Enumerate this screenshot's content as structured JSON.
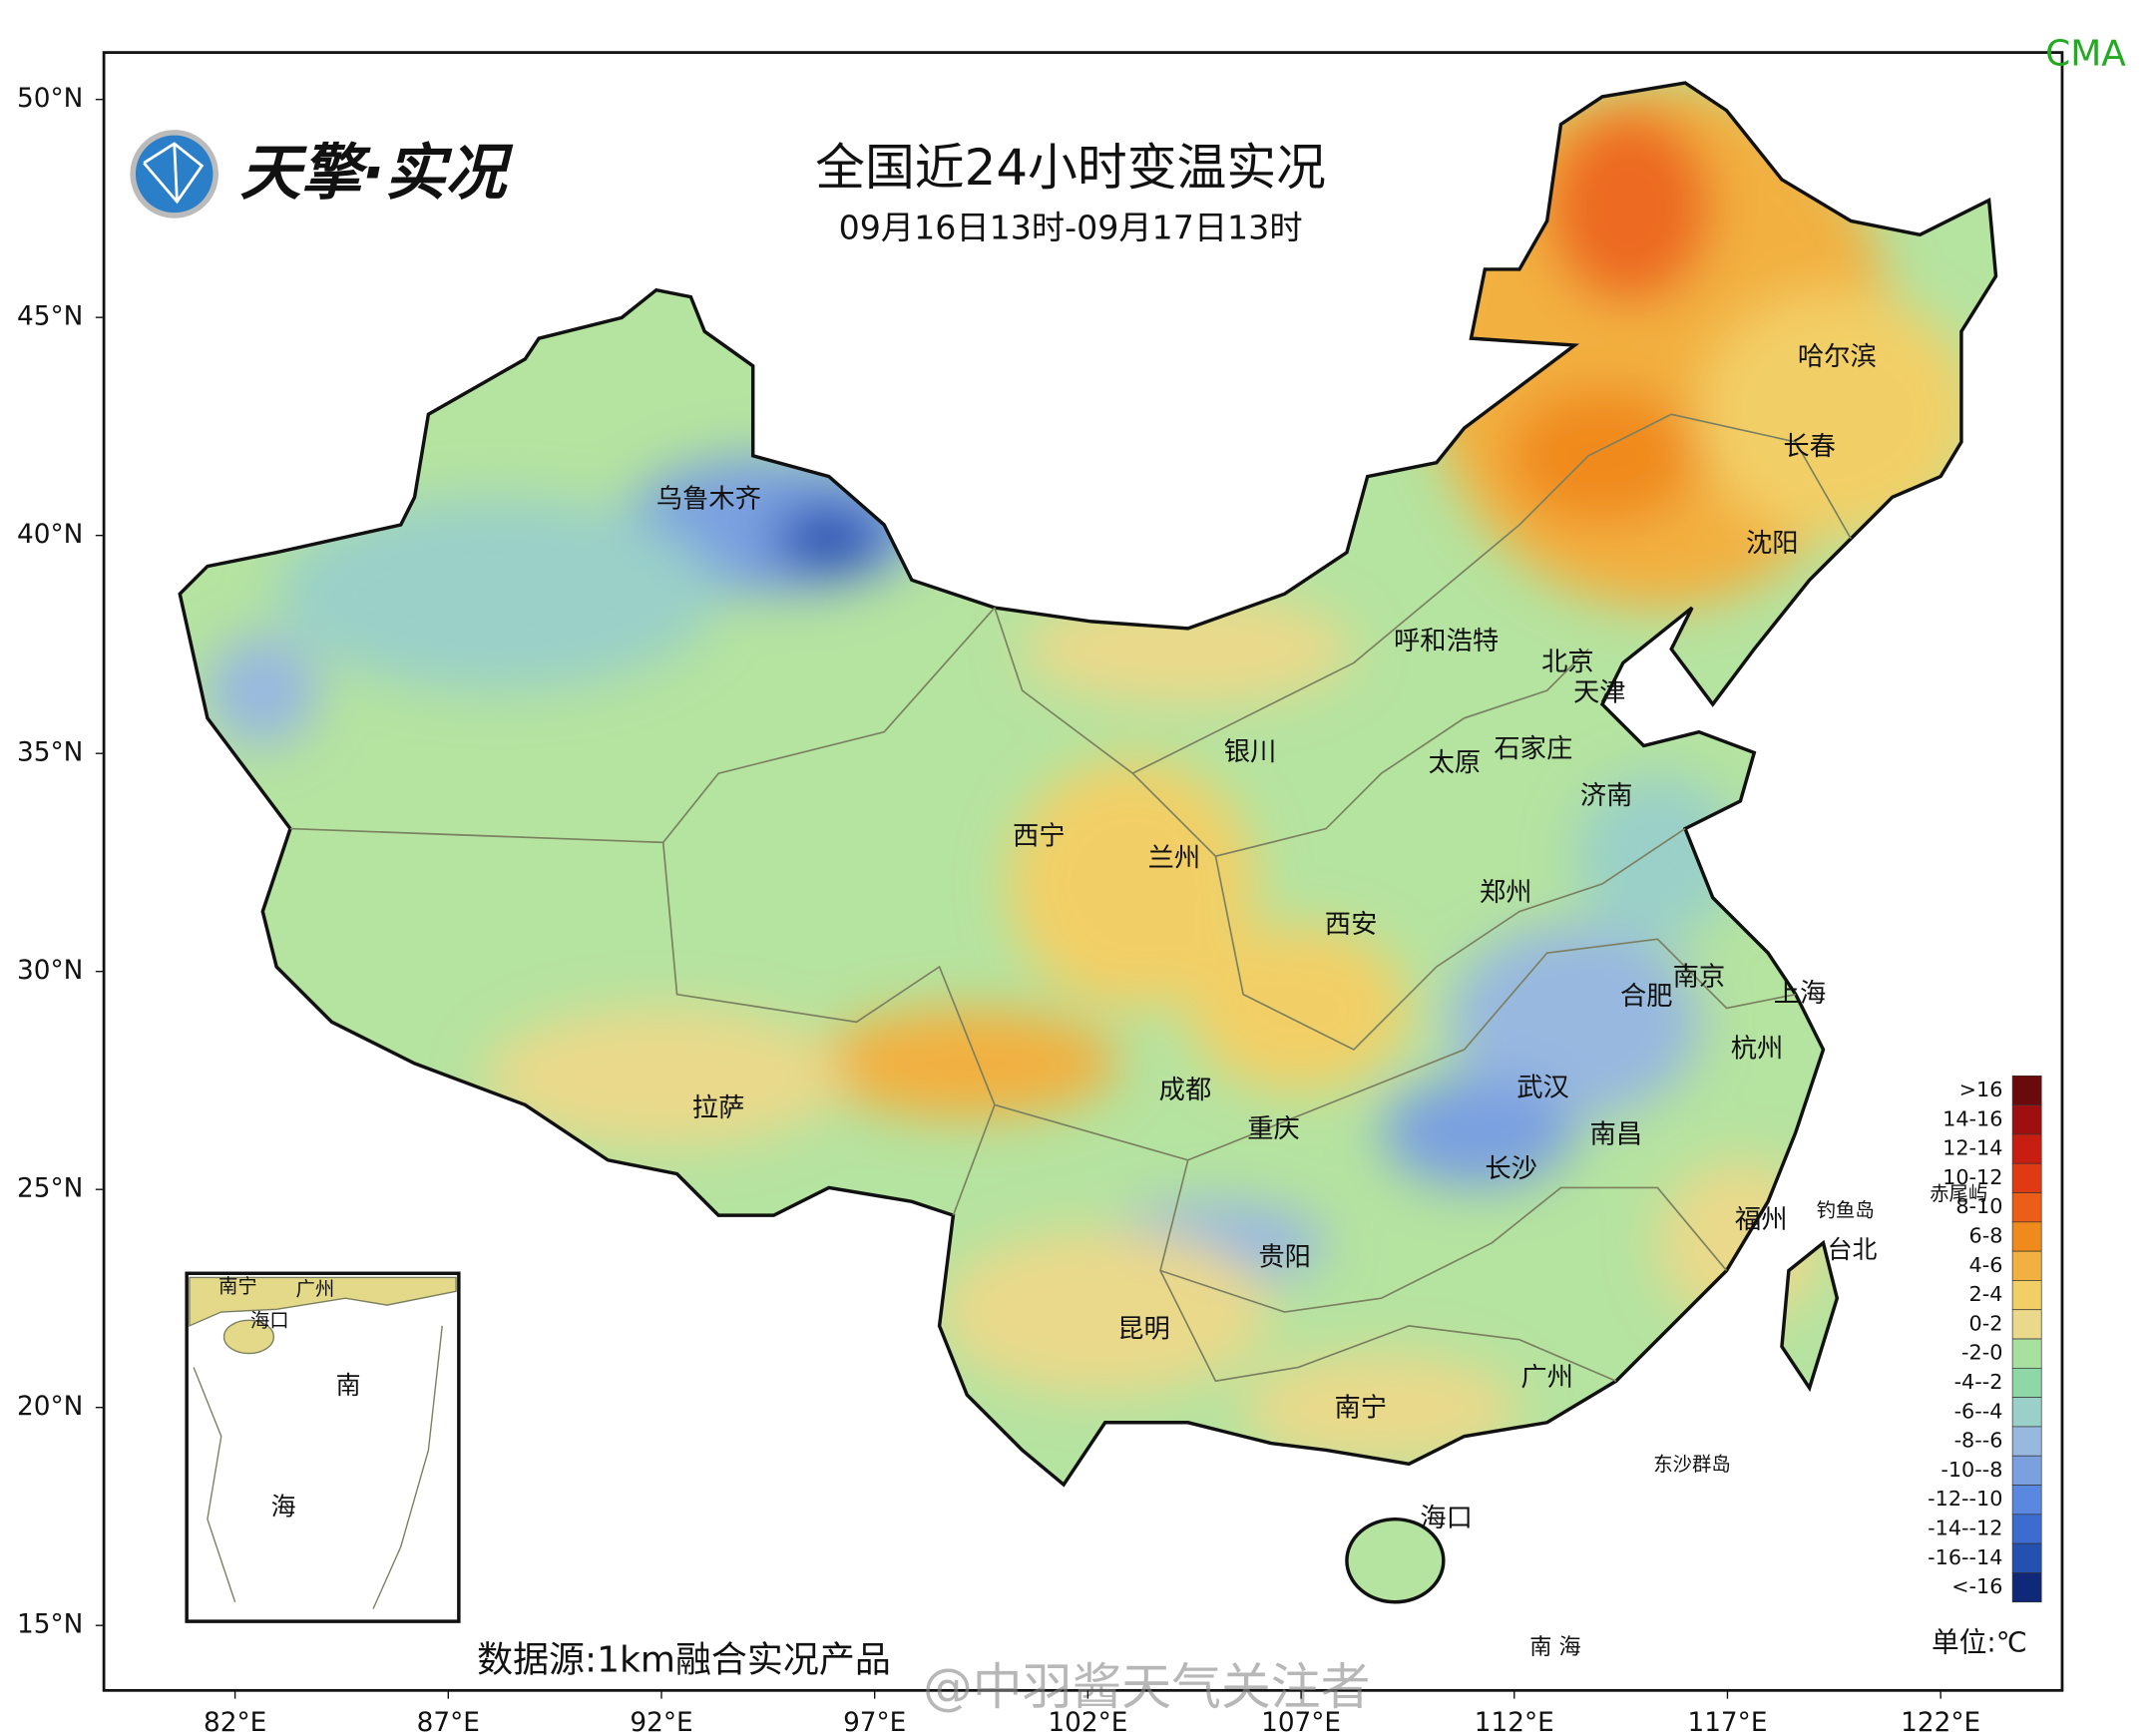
{
  "header": {
    "title": "全国近24小时变温实况",
    "subtitle": "09月16日13时-09月17日13时",
    "logo": "天擎·实况",
    "agency": "CMA"
  },
  "axes": {
    "lat_ticks": [
      {
        "value": 50,
        "label": "50°N"
      },
      {
        "value": 45,
        "label": "45°N"
      },
      {
        "value": 40,
        "label": "40°N"
      },
      {
        "value": 35,
        "label": "35°N"
      },
      {
        "value": 30,
        "label": "30°N"
      },
      {
        "value": 25,
        "label": "25°N"
      },
      {
        "value": 20,
        "label": "20°N"
      },
      {
        "value": 15,
        "label": "15°N"
      }
    ],
    "lon_ticks": [
      {
        "value": 82,
        "label": "82°E"
      },
      {
        "value": 87,
        "label": "87°E"
      },
      {
        "value": 92,
        "label": "92°E"
      },
      {
        "value": 97,
        "label": "97°E"
      },
      {
        "value": 102,
        "label": "102°E"
      },
      {
        "value": 107,
        "label": "107°E"
      },
      {
        "value": 112,
        "label": "112°E"
      },
      {
        "value": 117,
        "label": "117°E"
      },
      {
        "value": 122,
        "label": "122°E"
      }
    ]
  },
  "cities": [
    "乌鲁木齐",
    "哈尔滨",
    "长春",
    "沈阳",
    "呼和浩特",
    "北京",
    "天津",
    "银川",
    "石家庄",
    "太原",
    "济南",
    "西宁",
    "兰州",
    "郑州",
    "西安",
    "南京",
    "合肥",
    "上海",
    "杭州",
    "武汉",
    "拉萨",
    "成都",
    "南昌",
    "重庆",
    "长沙",
    "福州",
    "贵阳",
    "昆明",
    "南宁",
    "广州",
    "海口"
  ],
  "islands": [
    "钓鱼岛",
    "赤尾屿",
    "台北",
    "东沙群岛",
    "南 海"
  ],
  "inset": [
    "南宁",
    "广州",
    "海口",
    "南",
    "海"
  ],
  "legend": {
    "labels": [
      ">16",
      "14-16",
      "12-14",
      "10-12",
      "8-10",
      "6-8",
      "4-6",
      "2-4",
      "0-2",
      "-2-0",
      "-4--2",
      "-6--4",
      "-8--6",
      "-10--8",
      "-12--10",
      "-14--12",
      "-16--14",
      "<-16"
    ],
    "colors": [
      "#6b0a0a",
      "#a00f10",
      "#c81e12",
      "#e03a14",
      "#ec5e18",
      "#f08a1c",
      "#f2b040",
      "#f2cf66",
      "#ead98a",
      "#a8e0a0",
      "#8ed8a8",
      "#9ad0c8",
      "#98b8e0",
      "#7aa0e0",
      "#5a88e0",
      "#3c6cd0",
      "#2450b0",
      "#102878"
    ],
    "unit": "单位:℃"
  },
  "footer": {
    "source": "数据源:1km融合实况产品",
    "watermark": "@中羽酱天气关注者"
  }
}
